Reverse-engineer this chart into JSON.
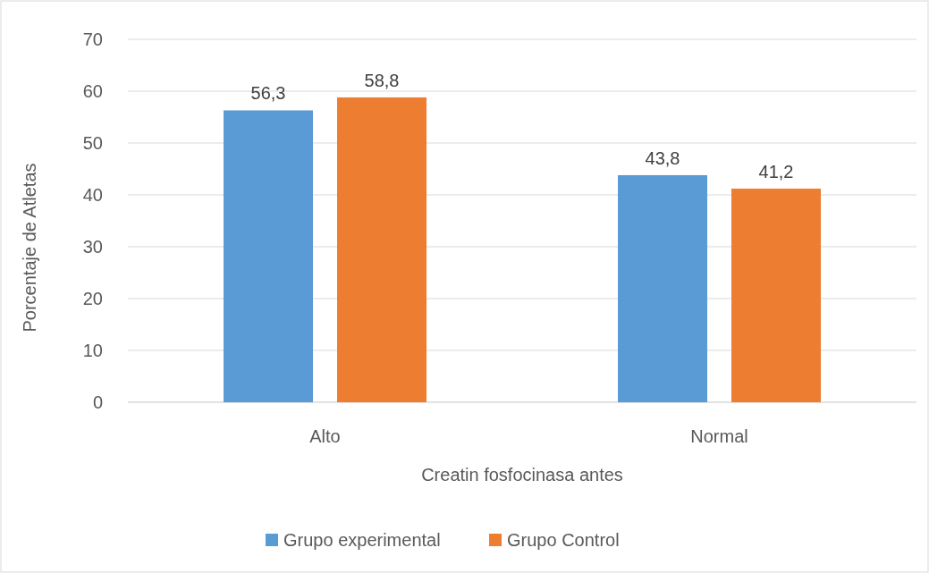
{
  "chart_data": {
    "type": "bar",
    "xlabel": "Creatin fosfocinasa antes",
    "ylabel": "Porcentaje de Atletas",
    "categories": [
      "Alto",
      "Normal"
    ],
    "series": [
      {
        "name": "Grupo experimental",
        "color": "#5b9bd5",
        "values": [
          56.3,
          43.8
        ],
        "value_labels": [
          "56,3",
          "43,8"
        ]
      },
      {
        "name": "Grupo Control",
        "color": "#ed7d31",
        "values": [
          58.8,
          41.2
        ],
        "value_labels": [
          "58,8",
          "41,2"
        ]
      }
    ],
    "ylim": [
      0,
      70
    ],
    "yticks": [
      0,
      10,
      20,
      30,
      40,
      50,
      60,
      70
    ],
    "grid": "y",
    "legend": "bottom"
  }
}
